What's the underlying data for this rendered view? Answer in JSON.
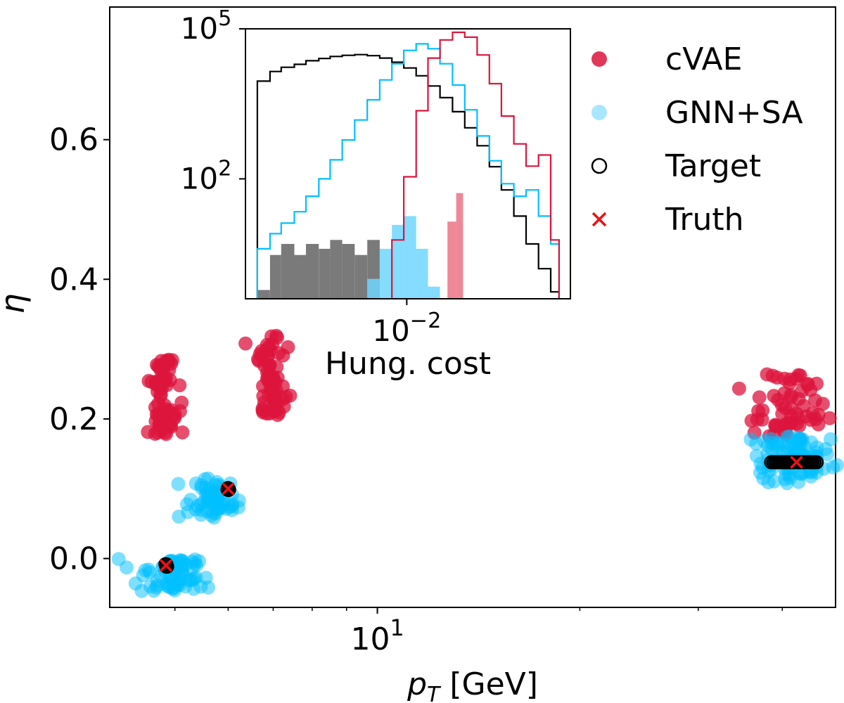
{
  "chart_data": [
    {
      "type": "scatter",
      "xlabel_main": "p",
      "xlabel_sub": "T",
      "xlabel_unit": " [GeV]",
      "ylabel": "η",
      "xscale": "log",
      "xlim": [
        4.0,
        48.0
      ],
      "ylim": [
        -0.07,
        0.79
      ],
      "x_ticks": [
        {
          "value": 10,
          "base": "10",
          "exp": "1"
        }
      ],
      "y_ticks": [
        {
          "value": 0.0,
          "label": "0.0"
        },
        {
          "value": 0.2,
          "label": "0.2"
        },
        {
          "value": 0.4,
          "label": "0.4"
        },
        {
          "value": 0.6,
          "label": "0.6"
        }
      ],
      "legend_position": "top-right",
      "legend": [
        {
          "name": "cVAE",
          "marker": "filled-circle",
          "color": "#dc143c"
        },
        {
          "name": "GNN+SA",
          "marker": "filled-circle",
          "color": "#6fd6ff"
        },
        {
          "name": "Target",
          "marker": "open-circle",
          "color": "#000000"
        },
        {
          "name": "Truth",
          "marker": "x",
          "color": "#ee1111"
        }
      ],
      "series": [
        {
          "name": "cVAE",
          "color": "#dc143c",
          "clusters": [
            {
              "x_center": 4.8,
              "x_spread": 0.025,
              "y_min": 0.175,
              "y_max": 0.285,
              "points": 60
            },
            {
              "x_center": 6.95,
              "x_spread": 0.025,
              "y_min": 0.205,
              "y_max": 0.32,
              "points": 60
            },
            {
              "x_center": 41.0,
              "x_spread": 0.06,
              "y_min": 0.17,
              "y_max": 0.265,
              "points": 60
            }
          ]
        },
        {
          "name": "GNN+SA",
          "color": "#00bfff",
          "clusters": [
            {
              "x_center": 5.0,
              "x_spread": 0.06,
              "y_min": -0.048,
              "y_max": 0.0,
              "points": 70
            },
            {
              "x_center": 5.75,
              "x_spread": 0.04,
              "y_min": 0.058,
              "y_max": 0.115,
              "points": 60
            },
            {
              "x_center": 41.0,
              "x_spread": 0.06,
              "y_min": 0.108,
              "y_max": 0.175,
              "points": 90
            }
          ]
        }
      ],
      "targets": [
        {
          "x": 4.85,
          "y": -0.01
        },
        {
          "x": 6.0,
          "y": 0.1
        },
        {
          "x_min": 38.5,
          "x_max": 45.0,
          "y": 0.138
        }
      ],
      "truth": [
        {
          "x": 4.85,
          "y": -0.01
        },
        {
          "x": 6.0,
          "y": 0.1
        },
        {
          "x": 42.0,
          "y": 0.138
        }
      ]
    },
    {
      "type": "histogram",
      "xlabel": "Hung. cost",
      "xscale": "log",
      "yscale": "log",
      "x_ticks": [
        {
          "value": 0.01,
          "base": "10",
          "exp": "−2"
        }
      ],
      "y_ticks": [
        {
          "value": 100,
          "base": "10",
          "exp": "2"
        },
        {
          "value": 100000,
          "base": "10",
          "exp": "5"
        }
      ],
      "line_series": [
        {
          "name": "Target",
          "color": "#000000",
          "bins": [
            [
              0.0022,
              0.0025,
              9000
            ],
            [
              0.0025,
              0.0028,
              14000
            ],
            [
              0.0028,
              0.0032,
              17000
            ],
            [
              0.0032,
              0.0036,
              19500
            ],
            [
              0.0036,
              0.0041,
              23000
            ],
            [
              0.0041,
              0.0046,
              25500
            ],
            [
              0.0046,
              0.0052,
              28000
            ],
            [
              0.0052,
              0.0059,
              29500
            ],
            [
              0.0059,
              0.0067,
              30500
            ],
            [
              0.0067,
              0.0076,
              29000
            ],
            [
              0.0076,
              0.0086,
              26000
            ],
            [
              0.0086,
              0.0097,
              21500
            ],
            [
              0.0097,
              0.011,
              16500
            ],
            [
              0.011,
              0.0124,
              11500
            ],
            [
              0.0124,
              0.014,
              7200
            ],
            [
              0.014,
              0.0159,
              4200
            ],
            [
              0.0159,
              0.018,
              2200
            ],
            [
              0.018,
              0.0204,
              1050
            ],
            [
              0.0204,
              0.0231,
              460
            ],
            [
              0.0231,
              0.0261,
              175
            ],
            [
              0.0261,
              0.0296,
              60
            ],
            [
              0.0296,
              0.0335,
              18
            ],
            [
              0.0335,
              0.038,
              5
            ],
            [
              0.038,
              0.043,
              1.6
            ],
            [
              0.043,
              0.0468,
              0.55
            ]
          ]
        },
        {
          "name": "GNN+SA",
          "color": "#00bfff",
          "bins": [
            [
              0.0022,
              0.0025,
              4
            ],
            [
              0.0025,
              0.0028,
              8
            ],
            [
              0.0028,
              0.0032,
              13
            ],
            [
              0.0032,
              0.0036,
              22
            ],
            [
              0.0036,
              0.0041,
              45
            ],
            [
              0.0041,
              0.0046,
              100
            ],
            [
              0.0046,
              0.0052,
              240
            ],
            [
              0.0052,
              0.0059,
              600
            ],
            [
              0.0059,
              0.0067,
              1500
            ],
            [
              0.0067,
              0.0076,
              3800
            ],
            [
              0.0076,
              0.0086,
              9500
            ],
            [
              0.0086,
              0.0097,
              20000
            ],
            [
              0.0097,
              0.011,
              37000
            ],
            [
              0.011,
              0.0124,
              50000
            ],
            [
              0.0124,
              0.014,
              40000
            ],
            [
              0.014,
              0.0159,
              20000
            ],
            [
              0.0159,
              0.018,
              7500
            ],
            [
              0.018,
              0.0204,
              2400
            ],
            [
              0.0204,
              0.0231,
              720
            ],
            [
              0.0231,
              0.0261,
              230
            ],
            [
              0.0261,
              0.0296,
              80
            ],
            [
              0.0296,
              0.0335,
              45
            ],
            [
              0.0335,
              0.038,
              60
            ],
            [
              0.038,
              0.043,
              18
            ],
            [
              0.043,
              0.0468,
              5
            ]
          ]
        },
        {
          "name": "cVAE",
          "color": "#dc143c",
          "bins": [
            [
              0.0086,
              0.0097,
              6
            ],
            [
              0.0097,
              0.011,
              110
            ],
            [
              0.011,
              0.0124,
              2300
            ],
            [
              0.0124,
              0.014,
              26000
            ],
            [
              0.014,
              0.0159,
              60000
            ],
            [
              0.0159,
              0.018,
              85000
            ],
            [
              0.018,
              0.0204,
              68000
            ],
            [
              0.0204,
              0.0231,
              30000
            ],
            [
              0.0231,
              0.0261,
              8000
            ],
            [
              0.0261,
              0.0296,
              1800
            ],
            [
              0.0296,
              0.0335,
              500
            ],
            [
              0.0335,
              0.038,
              180
            ],
            [
              0.038,
              0.043,
              300
            ],
            [
              0.043,
              0.0468,
              6
            ]
          ]
        }
      ],
      "filled_series": [
        {
          "name": "Target",
          "color": "#7a7a7a",
          "bins": [
            [
              0.0022,
              0.0025,
              0.6
            ],
            [
              0.0025,
              0.0028,
              3
            ],
            [
              0.0028,
              0.0032,
              5
            ],
            [
              0.0032,
              0.0036,
              3
            ],
            [
              0.0036,
              0.0041,
              5
            ],
            [
              0.0041,
              0.0046,
              4
            ],
            [
              0.0046,
              0.0052,
              6
            ],
            [
              0.0052,
              0.0059,
              5
            ],
            [
              0.0059,
              0.0067,
              3
            ],
            [
              0.0067,
              0.0076,
              6
            ]
          ]
        },
        {
          "name": "GNN+SA",
          "color": "#6fd6ff",
          "bins": [
            [
              0.0067,
              0.0076,
              1
            ],
            [
              0.0076,
              0.0086,
              4
            ],
            [
              0.0086,
              0.0097,
              12
            ],
            [
              0.0097,
              0.011,
              18
            ],
            [
              0.011,
              0.0124,
              4
            ],
            [
              0.0124,
              0.014,
              0.7
            ]
          ]
        },
        {
          "name": "cVAE",
          "color": "#ee8899",
          "bins": [
            [
              0.0151,
              0.0165,
              14
            ],
            [
              0.0165,
              0.0177,
              52
            ]
          ]
        }
      ]
    }
  ]
}
